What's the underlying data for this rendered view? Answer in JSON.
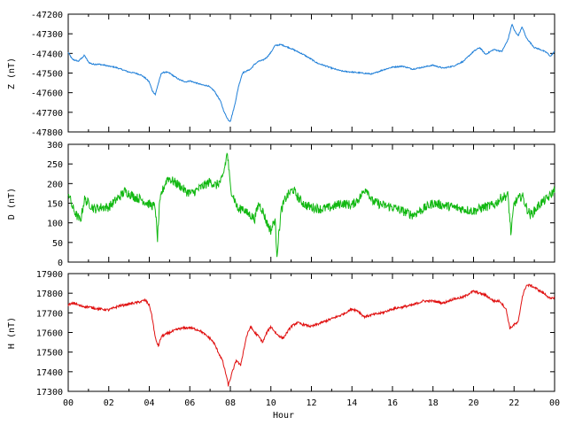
{
  "chart_data": {
    "type": "line",
    "layout": "3 vertically stacked panels sharing x-axis",
    "xlabel": "Hour",
    "xlim": [
      0,
      24
    ],
    "x_ticks": [
      "00",
      "02",
      "04",
      "06",
      "08",
      "10",
      "12",
      "14",
      "16",
      "18",
      "20",
      "22",
      "00"
    ],
    "grid": false,
    "panels": [
      {
        "name": "Z",
        "ylabel": "Z (nT)",
        "ylim": [
          -47800,
          -47200
        ],
        "y_ticks": [
          "-47200",
          "-47300",
          "-47400",
          "-47500",
          "-47600",
          "-47700",
          "-47800"
        ],
        "color": "#1f7fd8",
        "noise": 3,
        "x": [
          0,
          0.2,
          0.5,
          0.8,
          1.0,
          1.2,
          1.5,
          1.8,
          2.0,
          2.3,
          2.6,
          3.0,
          3.3,
          3.6,
          3.8,
          4.0,
          4.15,
          4.3,
          4.4,
          4.6,
          4.8,
          5.0,
          5.2,
          5.5,
          5.8,
          6.0,
          6.3,
          6.6,
          6.9,
          7.2,
          7.5,
          7.7,
          7.9,
          8.0,
          8.2,
          8.4,
          8.6,
          8.8,
          9.0,
          9.2,
          9.4,
          9.6,
          9.8,
          10.0,
          10.2,
          10.5,
          11.0,
          11.3,
          11.6,
          12.0,
          12.3,
          12.6,
          13.0,
          13.5,
          14.0,
          14.5,
          15.0,
          15.5,
          16.0,
          16.5,
          17.0,
          17.5,
          18.0,
          18.5,
          19.0,
          19.5,
          20.0,
          20.3,
          20.6,
          21.0,
          21.4,
          21.7,
          21.9,
          22.0,
          22.2,
          22.4,
          22.6,
          22.8,
          23.0,
          23.3,
          23.6,
          23.8,
          24.0
        ],
        "y": [
          -47395,
          -47430,
          -47440,
          -47410,
          -47445,
          -47455,
          -47455,
          -47460,
          -47465,
          -47470,
          -47480,
          -47495,
          -47500,
          -47510,
          -47525,
          -47545,
          -47590,
          -47610,
          -47570,
          -47500,
          -47495,
          -47500,
          -47515,
          -47535,
          -47545,
          -47540,
          -47550,
          -47560,
          -47565,
          -47590,
          -47640,
          -47700,
          -47740,
          -47745,
          -47670,
          -47570,
          -47500,
          -47490,
          -47480,
          -47455,
          -47440,
          -47435,
          -47420,
          -47395,
          -47360,
          -47355,
          -47375,
          -47390,
          -47405,
          -47430,
          -47450,
          -47460,
          -47475,
          -47490,
          -47495,
          -47500,
          -47505,
          -47485,
          -47470,
          -47465,
          -47480,
          -47470,
          -47460,
          -47475,
          -47465,
          -47440,
          -47390,
          -47370,
          -47405,
          -47380,
          -47390,
          -47330,
          -47250,
          -47280,
          -47310,
          -47265,
          -47320,
          -47345,
          -47370,
          -47380,
          -47395,
          -47415,
          -47390
        ]
      },
      {
        "name": "D",
        "ylabel": "D (nT)",
        "ylim": [
          0,
          300
        ],
        "y_ticks": [
          "300",
          "250",
          "200",
          "150",
          "100",
          "50",
          "0"
        ],
        "color": "#11b811",
        "noise": 12,
        "x": [
          0,
          0.2,
          0.4,
          0.6,
          0.8,
          1.0,
          1.3,
          1.6,
          2.0,
          2.3,
          2.6,
          2.8,
          3.0,
          3.3,
          3.6,
          3.9,
          4.1,
          4.3,
          4.4,
          4.5,
          4.6,
          4.9,
          5.2,
          5.5,
          5.8,
          6.1,
          6.4,
          6.7,
          7.0,
          7.3,
          7.6,
          7.75,
          7.85,
          8.0,
          8.2,
          8.4,
          8.6,
          8.8,
          9.0,
          9.2,
          9.4,
          9.6,
          9.8,
          10.0,
          10.2,
          10.3,
          10.5,
          10.7,
          10.9,
          11.1,
          11.4,
          11.7,
          12.0,
          12.5,
          13.0,
          13.5,
          14.0,
          14.4,
          14.7,
          15.0,
          15.5,
          16.0,
          16.5,
          17.0,
          17.5,
          18.0,
          18.5,
          19.0,
          19.5,
          20.0,
          20.5,
          21.0,
          21.4,
          21.7,
          21.85,
          22.0,
          22.2,
          22.4,
          22.6,
          22.8,
          23.0,
          23.3,
          23.6,
          23.8,
          24.0
        ],
        "y": [
          180,
          140,
          120,
          105,
          160,
          150,
          135,
          140,
          140,
          155,
          170,
          180,
          175,
          165,
          160,
          150,
          145,
          140,
          55,
          140,
          175,
          215,
          205,
          195,
          180,
          175,
          185,
          195,
          205,
          195,
          210,
          250,
          280,
          190,
          160,
          130,
          140,
          125,
          120,
          110,
          150,
          130,
          100,
          80,
          110,
          20,
          130,
          160,
          175,
          185,
          160,
          145,
          140,
          135,
          140,
          150,
          145,
          165,
          190,
          155,
          145,
          140,
          130,
          120,
          135,
          150,
          145,
          140,
          135,
          130,
          140,
          145,
          165,
          170,
          70,
          150,
          160,
          170,
          140,
          120,
          130,
          150,
          160,
          170,
          185
        ]
      },
      {
        "name": "H",
        "ylabel": "H (nT)",
        "ylim": [
          17300,
          17900
        ],
        "y_ticks": [
          "17900",
          "17800",
          "17700",
          "17600",
          "17500",
          "17400",
          "17300"
        ],
        "color": "#e01010",
        "noise": 6,
        "x": [
          0,
          0.3,
          0.6,
          1.0,
          1.5,
          2.0,
          2.5,
          3.0,
          3.5,
          3.8,
          4.0,
          4.1,
          4.2,
          4.3,
          4.45,
          4.6,
          4.8,
          5.0,
          5.5,
          6.0,
          6.5,
          6.8,
          7.0,
          7.2,
          7.4,
          7.6,
          7.7,
          7.8,
          7.9,
          8.1,
          8.3,
          8.5,
          8.8,
          9.0,
          9.2,
          9.4,
          9.6,
          9.8,
          10.0,
          10.3,
          10.6,
          11.0,
          11.3,
          11.6,
          12.0,
          12.5,
          13.0,
          13.5,
          14.0,
          14.3,
          14.6,
          15.0,
          15.5,
          16.0,
          16.5,
          17.0,
          17.5,
          18.0,
          18.5,
          19.0,
          19.5,
          19.8,
          20.0,
          20.3,
          20.6,
          21.0,
          21.3,
          21.6,
          21.8,
          22.0,
          22.2,
          22.4,
          22.6,
          22.8,
          23.0,
          23.3,
          23.6,
          23.8,
          24.0
        ],
        "y": [
          17740,
          17750,
          17735,
          17730,
          17720,
          17715,
          17735,
          17745,
          17755,
          17765,
          17740,
          17700,
          17640,
          17570,
          17530,
          17580,
          17590,
          17600,
          17620,
          17625,
          17610,
          17585,
          17570,
          17545,
          17500,
          17460,
          17420,
          17380,
          17330,
          17400,
          17460,
          17430,
          17580,
          17630,
          17600,
          17580,
          17550,
          17600,
          17630,
          17590,
          17570,
          17630,
          17650,
          17640,
          17630,
          17650,
          17670,
          17690,
          17720,
          17710,
          17680,
          17690,
          17700,
          17720,
          17730,
          17740,
          17760,
          17760,
          17750,
          17770,
          17780,
          17800,
          17810,
          17800,
          17790,
          17760,
          17760,
          17720,
          17620,
          17640,
          17650,
          17780,
          17840,
          17840,
          17830,
          17810,
          17790,
          17770,
          17780
        ]
      }
    ]
  }
}
